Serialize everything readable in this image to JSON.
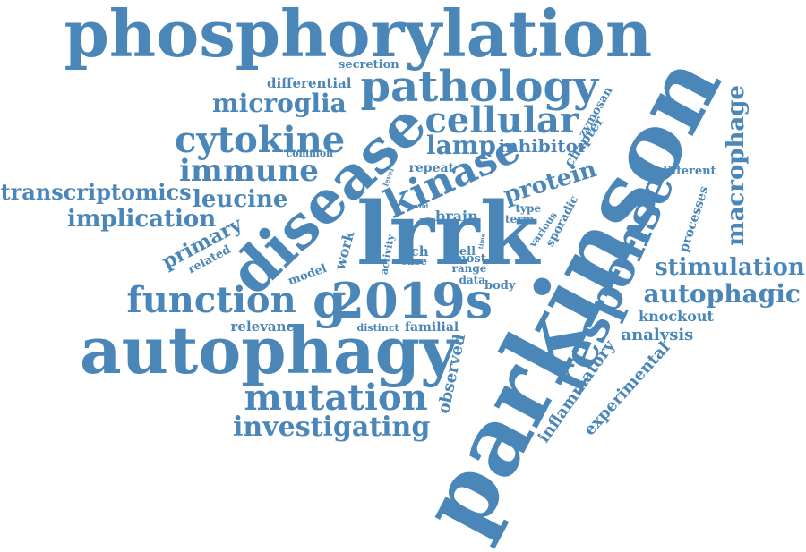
{
  "colors": {
    "word": "#4a86b7",
    "background": "#ffffff"
  },
  "words": [
    "phosphorylation",
    "parkinson",
    "lrrk",
    "autophagy",
    "disease",
    "pathology",
    "response",
    "cellular",
    "cytokine",
    "kinase",
    "immune",
    "macrophage",
    "function",
    "2019s",
    "mutation",
    "investigating",
    "microglia",
    "protein",
    "stimulation",
    "autophagic",
    "transcriptomics",
    "leucine",
    "implication",
    "primary",
    "inflammatory",
    "experimental",
    "analysis",
    "knockout",
    "observed",
    "lamp",
    "inhibitor",
    "zymosan",
    "chapter",
    "different",
    "processes",
    "sporadic",
    "secretion",
    "differential",
    "common",
    "repeat",
    "related",
    "model",
    "relevance",
    "distinct",
    "familial",
    "brain",
    "rich",
    "cell",
    "most",
    "range",
    "data",
    "body",
    "type",
    "term",
    "work",
    "activity",
    "case",
    "level",
    "wild",
    "role",
    "time",
    "various",
    "g"
  ]
}
